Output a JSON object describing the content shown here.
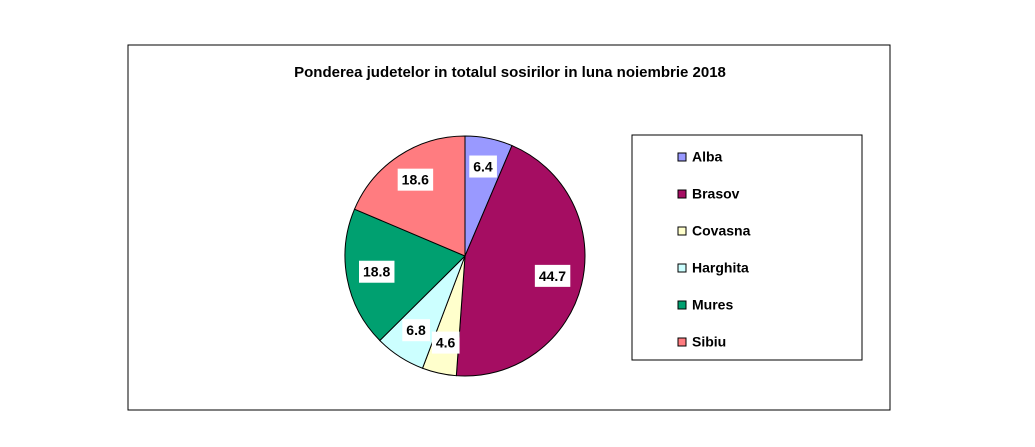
{
  "chart_data": {
    "type": "pie",
    "title": "Ponderea judetelor in totalul sosirilor in luna noiembrie 2018",
    "categories": [
      "Alba",
      "Brasov",
      "Covasna",
      "Harghita",
      "Mures",
      "Sibiu"
    ],
    "values": [
      6.4,
      44.7,
      4.6,
      6.8,
      18.8,
      18.6
    ],
    "colors": [
      "#9999ff",
      "#a50d62",
      "#ffffcc",
      "#ccffff",
      "#00a070",
      "#ff7c80"
    ],
    "legend": "right"
  }
}
